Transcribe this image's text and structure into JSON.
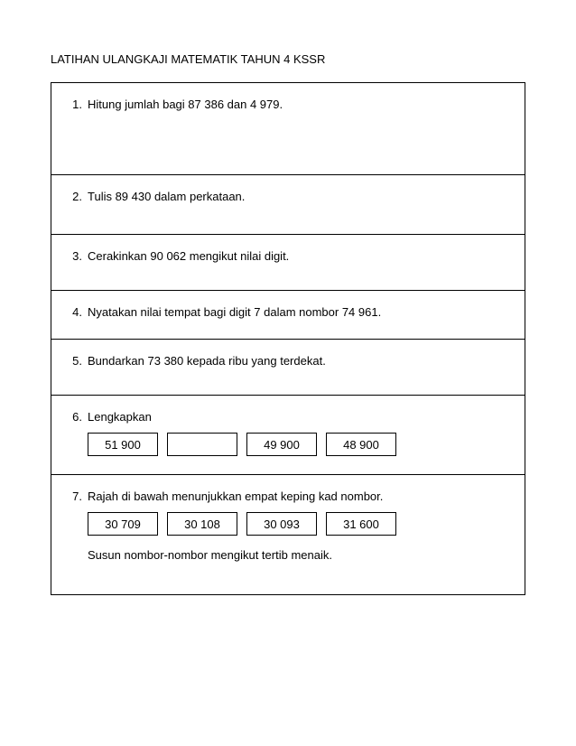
{
  "title": "LATIHAN ULANGKAJI MATEMATIK TAHUN 4 KSSR",
  "colors": {
    "text": "#000000",
    "background": "#ffffff",
    "border": "#000000"
  },
  "typography": {
    "font_family": "Arial, Helvetica, sans-serif",
    "body_fontsize": 13
  },
  "questions": [
    {
      "num": "1.",
      "text": "Hitung jumlah bagi 87 386 dan 4 979."
    },
    {
      "num": "2.",
      "text": "Tulis 89 430 dalam perkataan."
    },
    {
      "num": "3.",
      "text": "Cerakinkan 90 062 mengikut nilai digit."
    },
    {
      "num": "4.",
      "text": "Nyatakan nilai tempat bagi digit 7 dalam nombor 74 961."
    },
    {
      "num": "5.",
      "text": "Bundarkan 73 380 kepada ribu yang terdekat."
    },
    {
      "num": "6.",
      "text": "Lengkapkan",
      "boxes": [
        "51 900",
        "",
        "49 900",
        "48  900"
      ]
    },
    {
      "num": "7.",
      "text": "Rajah di bawah menunjukkan empat keping kad nombor.",
      "boxes": [
        "30 709",
        "30 108",
        "30 093",
        "31 600"
      ],
      "after": "Susun nombor-nombor mengikut tertib menaik."
    }
  ]
}
